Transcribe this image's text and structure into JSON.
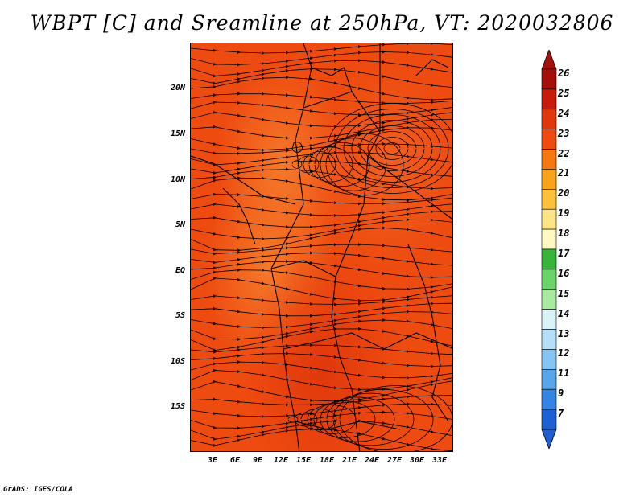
{
  "title": "WBPT [C] and Sreamline at 250hPa, VT: 2020032806",
  "footer": "GrADS: IGES/COLA",
  "map": {
    "lat_labels": [
      "20N",
      "15N",
      "10N",
      "5N",
      "EQ",
      "5S",
      "10S",
      "15S"
    ],
    "lon_labels": [
      "3E",
      "6E",
      "9E",
      "12E",
      "15E",
      "18E",
      "21E",
      "24E",
      "27E",
      "30E",
      "33E"
    ],
    "fill_colors": {
      "base": "#ee4b10",
      "warm_light": "#f57a2a",
      "hot": "#e0380c"
    }
  },
  "colorbar": {
    "labels": [
      "26",
      "25",
      "24",
      "23",
      "22",
      "21",
      "20",
      "19",
      "18",
      "17",
      "16",
      "15",
      "14",
      "13",
      "12",
      "11",
      "9",
      "7"
    ],
    "colors": [
      "#a50f0a",
      "#c81a0c",
      "#e0380c",
      "#ee4b10",
      "#f77810",
      "#f9a21b",
      "#fbc13a",
      "#fde486",
      "#fef9c0",
      "#37b53b",
      "#6cd36a",
      "#a7eaa0",
      "#d9f4f6",
      "#b5dff7",
      "#86c4f1",
      "#5aa4ea",
      "#3684e2",
      "#1e5fd3"
    ]
  }
}
